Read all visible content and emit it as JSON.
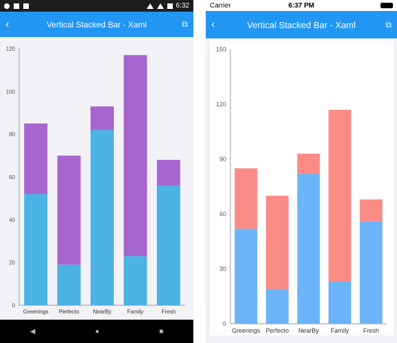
{
  "android": {
    "status": {
      "time": "6:32"
    },
    "title": "Vertical Stacked Bar - Xaml",
    "back_icon": "‹",
    "external_icon": "⧉",
    "nav_buttons": [
      "◀",
      "●",
      "■"
    ]
  },
  "ios": {
    "status": {
      "carrier": "Carrier",
      "time": "6:37 PM"
    },
    "title": "Vertical Stacked Bar - Xaml",
    "back_icon": "‹",
    "external_icon": "⧉"
  },
  "chart_data": [
    {
      "type": "bar",
      "stacked": true,
      "categories": [
        "Greenings",
        "Perfecto",
        "NearBy",
        "Family",
        "Fresh"
      ],
      "series": [
        {
          "values": [
            52,
            19,
            82,
            23,
            56
          ],
          "color": "#4bb3e6"
        },
        {
          "values": [
            33,
            51,
            11,
            94,
            12
          ],
          "color": "#a766cf"
        }
      ],
      "yticks": [
        0,
        20,
        40,
        60,
        80,
        100,
        120
      ],
      "ylim": [
        0,
        120
      ],
      "grid": false
    },
    {
      "type": "bar",
      "stacked": true,
      "categories": [
        "Greenings",
        "Perfecto",
        "NearBy",
        "Family",
        "Fresh"
      ],
      "series": [
        {
          "values": [
            52,
            19,
            82,
            23,
            56
          ],
          "color": "#6cb4f8"
        },
        {
          "values": [
            33,
            51,
            11,
            94,
            12
          ],
          "color": "#fb8b85"
        }
      ],
      "yticks": [
        0,
        30,
        60,
        90,
        120,
        150
      ],
      "ylim": [
        0,
        150
      ],
      "grid": false
    }
  ]
}
